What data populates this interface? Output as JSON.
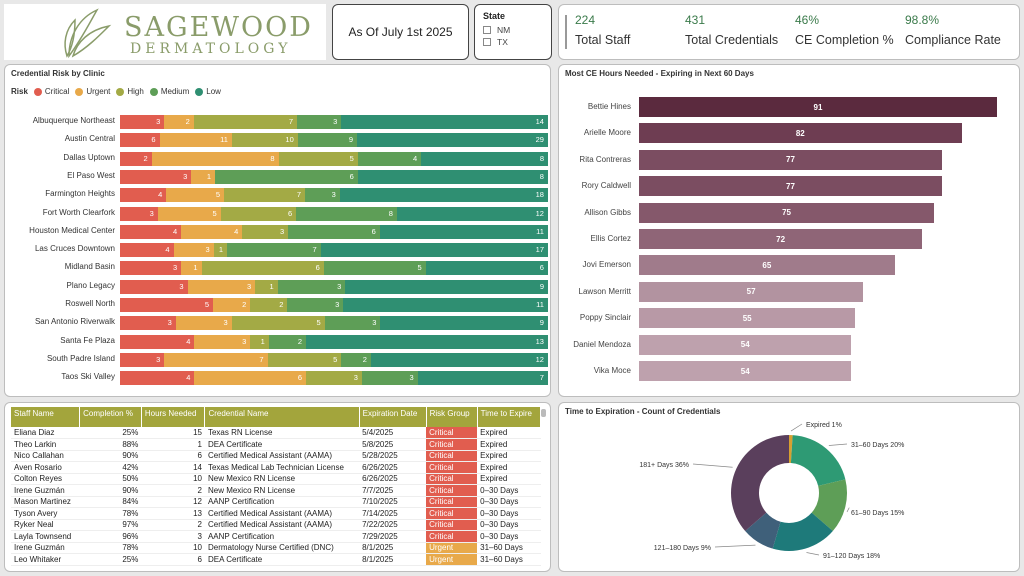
{
  "logo": {
    "brand": "SAGEWOOD",
    "sub": "DERMATOLOGY"
  },
  "asof": "As Of July 1st 2025",
  "state": {
    "title": "State",
    "options": [
      "NM",
      "TX"
    ]
  },
  "kpis": [
    {
      "value": "224",
      "label": "Total Staff"
    },
    {
      "value": "431",
      "label": "Total Credentials"
    },
    {
      "value": "46%",
      "label": "CE Completion %"
    },
    {
      "value": "98.8%",
      "label": "Compliance Rate"
    }
  ],
  "risk": {
    "title": "Credential Risk by Clinic",
    "legend_title": "Risk",
    "levels": [
      {
        "name": "Critical",
        "color": "#e15d4f"
      },
      {
        "name": "Urgent",
        "color": "#e8a94a"
      },
      {
        "name": "High",
        "color": "#a3aa45"
      },
      {
        "name": "Medium",
        "color": "#5e9e57"
      },
      {
        "name": "Low",
        "color": "#2f8f72"
      }
    ],
    "clinics": [
      {
        "name": "Albuquerque Northeast",
        "values": [
          3,
          2,
          7,
          3,
          14
        ]
      },
      {
        "name": "Austin Central",
        "values": [
          6,
          11,
          10,
          9,
          29
        ]
      },
      {
        "name": "Dallas Uptown",
        "values": [
          2,
          8,
          5,
          4,
          8
        ]
      },
      {
        "name": "El Paso West",
        "values": [
          3,
          1,
          0,
          6,
          8
        ]
      },
      {
        "name": "Farmington Heights",
        "values": [
          4,
          5,
          7,
          3,
          18
        ]
      },
      {
        "name": "Fort Worth Clearfork",
        "values": [
          3,
          5,
          6,
          8,
          12
        ]
      },
      {
        "name": "Houston Medical Center",
        "values": [
          4,
          4,
          3,
          6,
          11
        ]
      },
      {
        "name": "Las Cruces Downtown",
        "values": [
          4,
          3,
          1,
          7,
          17
        ]
      },
      {
        "name": "Midland Basin",
        "values": [
          3,
          1,
          6,
          5,
          6
        ]
      },
      {
        "name": "Plano Legacy",
        "values": [
          3,
          3,
          1,
          3,
          9
        ]
      },
      {
        "name": "Roswell North",
        "values": [
          5,
          2,
          2,
          3,
          11
        ]
      },
      {
        "name": "San Antonio Riverwalk",
        "values": [
          3,
          3,
          5,
          3,
          9
        ]
      },
      {
        "name": "Santa Fe Plaza",
        "values": [
          4,
          3,
          1,
          2,
          13
        ]
      },
      {
        "name": "South Padre Island",
        "values": [
          3,
          7,
          5,
          2,
          12
        ]
      },
      {
        "name": "Taos Ski Valley",
        "values": [
          4,
          6,
          3,
          3,
          7
        ]
      }
    ]
  },
  "ce": {
    "title": "Most CE Hours Needed - Expiring in Next 60 Days",
    "max": 91,
    "rows": [
      {
        "name": "Bettie Hines",
        "value": 91,
        "color": "#5b2a3e"
      },
      {
        "name": "Arielle Moore",
        "value": 82,
        "color": "#6e3d52"
      },
      {
        "name": "Rita Contreras",
        "value": 77,
        "color": "#7b4d61"
      },
      {
        "name": "Rory Caldwell",
        "value": 77,
        "color": "#7b4d61"
      },
      {
        "name": "Allison Gibbs",
        "value": 75,
        "color": "#85586b"
      },
      {
        "name": "Ellis Cortez",
        "value": 72,
        "color": "#8f6577"
      },
      {
        "name": "Jovi Emerson",
        "value": 65,
        "color": "#a07b8b"
      },
      {
        "name": "Lawson Merritt",
        "value": 57,
        "color": "#b293a0"
      },
      {
        "name": "Poppy Sinclair",
        "value": 55,
        "color": "#b899a6"
      },
      {
        "name": "Daniel Mendoza",
        "value": 54,
        "color": "#bea1ad"
      },
      {
        "name": "Vika Moce",
        "value": 54,
        "color": "#bea1ad"
      }
    ]
  },
  "table": {
    "headers": [
      "Staff Name",
      "Completion %",
      "Hours Needed",
      "Credential Name",
      "Expiration Date",
      "Risk Group",
      "Time to Expire"
    ],
    "rows": [
      [
        "Eliana Diaz",
        "25%",
        "15",
        "Texas RN License",
        "5/4/2025",
        "Critical",
        "Expired"
      ],
      [
        "Theo Larkin",
        "88%",
        "1",
        "DEA Certificate",
        "5/8/2025",
        "Critical",
        "Expired"
      ],
      [
        "Nico Callahan",
        "90%",
        "6",
        "Certified Medical Assistant (AAMA)",
        "5/28/2025",
        "Critical",
        "Expired"
      ],
      [
        "Aven Rosario",
        "42%",
        "14",
        "Texas Medical Lab Technician License",
        "6/26/2025",
        "Critical",
        "Expired"
      ],
      [
        "Colton Reyes",
        "50%",
        "10",
        "New Mexico RN License",
        "6/26/2025",
        "Critical",
        "Expired"
      ],
      [
        "Irene Guzmán",
        "90%",
        "2",
        "New Mexico RN License",
        "7/7/2025",
        "Critical",
        "0–30 Days"
      ],
      [
        "Mason Martinez",
        "84%",
        "12",
        "AANP Certification",
        "7/10/2025",
        "Critical",
        "0–30 Days"
      ],
      [
        "Tyson Avery",
        "78%",
        "13",
        "Certified Medical Assistant (AAMA)",
        "7/14/2025",
        "Critical",
        "0–30 Days"
      ],
      [
        "Ryker Neal",
        "97%",
        "2",
        "Certified Medical Assistant (AAMA)",
        "7/22/2025",
        "Critical",
        "0–30 Days"
      ],
      [
        "Layla Townsend",
        "96%",
        "3",
        "AANP Certification",
        "7/29/2025",
        "Critical",
        "0–30 Days"
      ],
      [
        "Irene Guzmán",
        "78%",
        "10",
        "Dermatology Nurse Certified (DNC)",
        "8/1/2025",
        "Urgent",
        "31–60 Days"
      ],
      [
        "Leo Whitaker",
        "25%",
        "6",
        "DEA Certificate",
        "8/1/2025",
        "Urgent",
        "31–60 Days"
      ]
    ]
  },
  "donut": {
    "title": "Time to Expiration - Count of Credentials",
    "slices": [
      {
        "label": "Expired 1%",
        "value": 1,
        "color": "#d8a030"
      },
      {
        "label": "31–60 Days 20%",
        "value": 20,
        "color": "#2e9a74"
      },
      {
        "label": "61–90 Days 15%",
        "value": 15,
        "color": "#5e9e57"
      },
      {
        "label": "91–120 Days 18%",
        "value": 18,
        "color": "#1e7a7a"
      },
      {
        "label": "121–180 Days 9%",
        "value": 9,
        "color": "#3f607a"
      },
      {
        "label": "181+ Days 36%",
        "value": 36,
        "color": "#5a3f5c"
      }
    ]
  }
}
